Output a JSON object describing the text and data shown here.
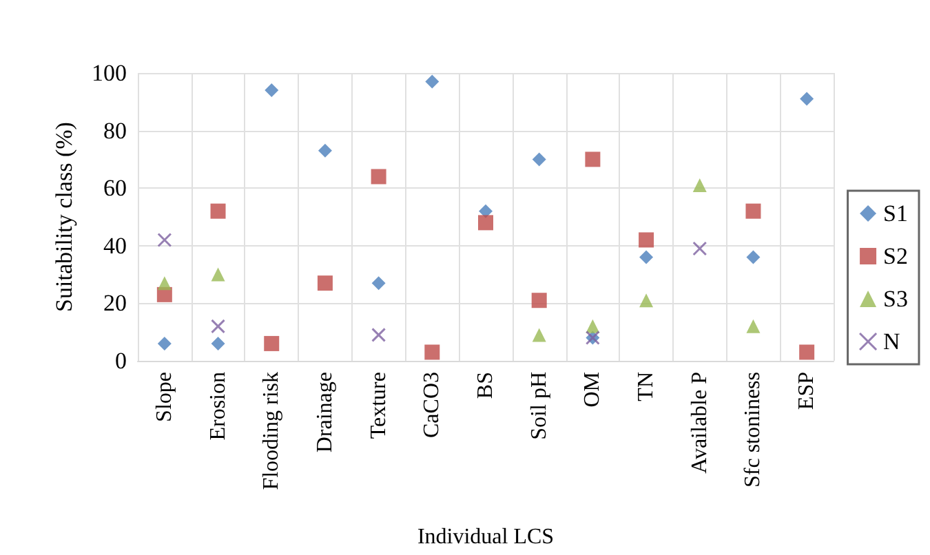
{
  "chart_data": {
    "type": "scatter",
    "xlabel": "Individual LCS",
    "ylabel": "Suitability class (%)",
    "categories": [
      "Slope",
      "Erosion",
      "Flooding risk",
      "Drainage",
      "Texture",
      "CaCO3",
      "BS",
      "Soil pH",
      "OM",
      "TN",
      "Available P",
      "Sfc stoniness",
      "ESP"
    ],
    "series": [
      {
        "name": "S1",
        "color": "#4a7ebb",
        "marker": "diamond",
        "values": [
          6,
          6,
          94,
          73,
          27,
          97,
          52,
          70,
          8,
          36,
          null,
          36,
          91
        ]
      },
      {
        "name": "S2",
        "color": "#be4b48",
        "marker": "square",
        "values": [
          23,
          52,
          6,
          27,
          64,
          3,
          48,
          21,
          70,
          42,
          null,
          52,
          3
        ]
      },
      {
        "name": "S3",
        "color": "#98b954",
        "marker": "triangle",
        "values": [
          27,
          30,
          null,
          null,
          null,
          null,
          null,
          9,
          12,
          21,
          61,
          12,
          null
        ]
      },
      {
        "name": "N",
        "color": "#7d60a0",
        "marker": "cross",
        "values": [
          42,
          12,
          null,
          null,
          9,
          null,
          null,
          null,
          8,
          null,
          39,
          null,
          null
        ]
      }
    ],
    "ylim": [
      0,
      100
    ],
    "yticks": [
      0,
      20,
      40,
      60,
      80,
      100
    ],
    "grid": true,
    "legend": "right"
  }
}
